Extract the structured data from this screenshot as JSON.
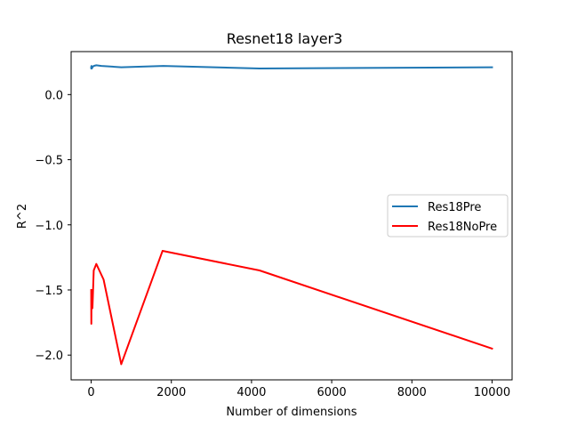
{
  "chart_data": {
    "type": "line",
    "title": "Resnet18 layer3",
    "xlabel": "Number of dimensions",
    "ylabel": "R^2",
    "xlim": [
      -500,
      10500
    ],
    "ylim": [
      -2.19,
      0.33
    ],
    "xticks": [
      0,
      2000,
      4000,
      6000,
      8000,
      10000
    ],
    "xtick_labels": [
      "0",
      "2000",
      "4000",
      "6000",
      "8000",
      "10000"
    ],
    "yticks": [
      0.0,
      -0.5,
      -1.0,
      -1.5,
      -2.0
    ],
    "ytick_labels": [
      "0.0",
      "−0.5",
      "−1.0",
      "−1.5",
      "−2.0"
    ],
    "grid": false,
    "legend_position": "center-right",
    "series": [
      {
        "name": "Res18Pre",
        "color": "#1f77b4",
        "x": [
          1,
          2,
          4,
          8,
          16,
          32,
          64,
          128,
          256,
          750,
          1800,
          4200,
          10000
        ],
        "y": [
          0.21,
          0.2,
          0.21,
          0.22,
          0.2,
          0.21,
          0.22,
          0.225,
          0.22,
          0.21,
          0.22,
          0.2,
          0.21
        ]
      },
      {
        "name": "Res18NoPre",
        "color": "#ff0000",
        "x": [
          1,
          2,
          4,
          8,
          16,
          32,
          64,
          128,
          310,
          750,
          1780,
          4200,
          10000
        ],
        "y": [
          -1.5,
          -1.62,
          -1.76,
          -1.55,
          -1.5,
          -1.64,
          -1.35,
          -1.3,
          -1.42,
          -2.07,
          -1.2,
          -1.35,
          -1.95
        ]
      }
    ]
  }
}
